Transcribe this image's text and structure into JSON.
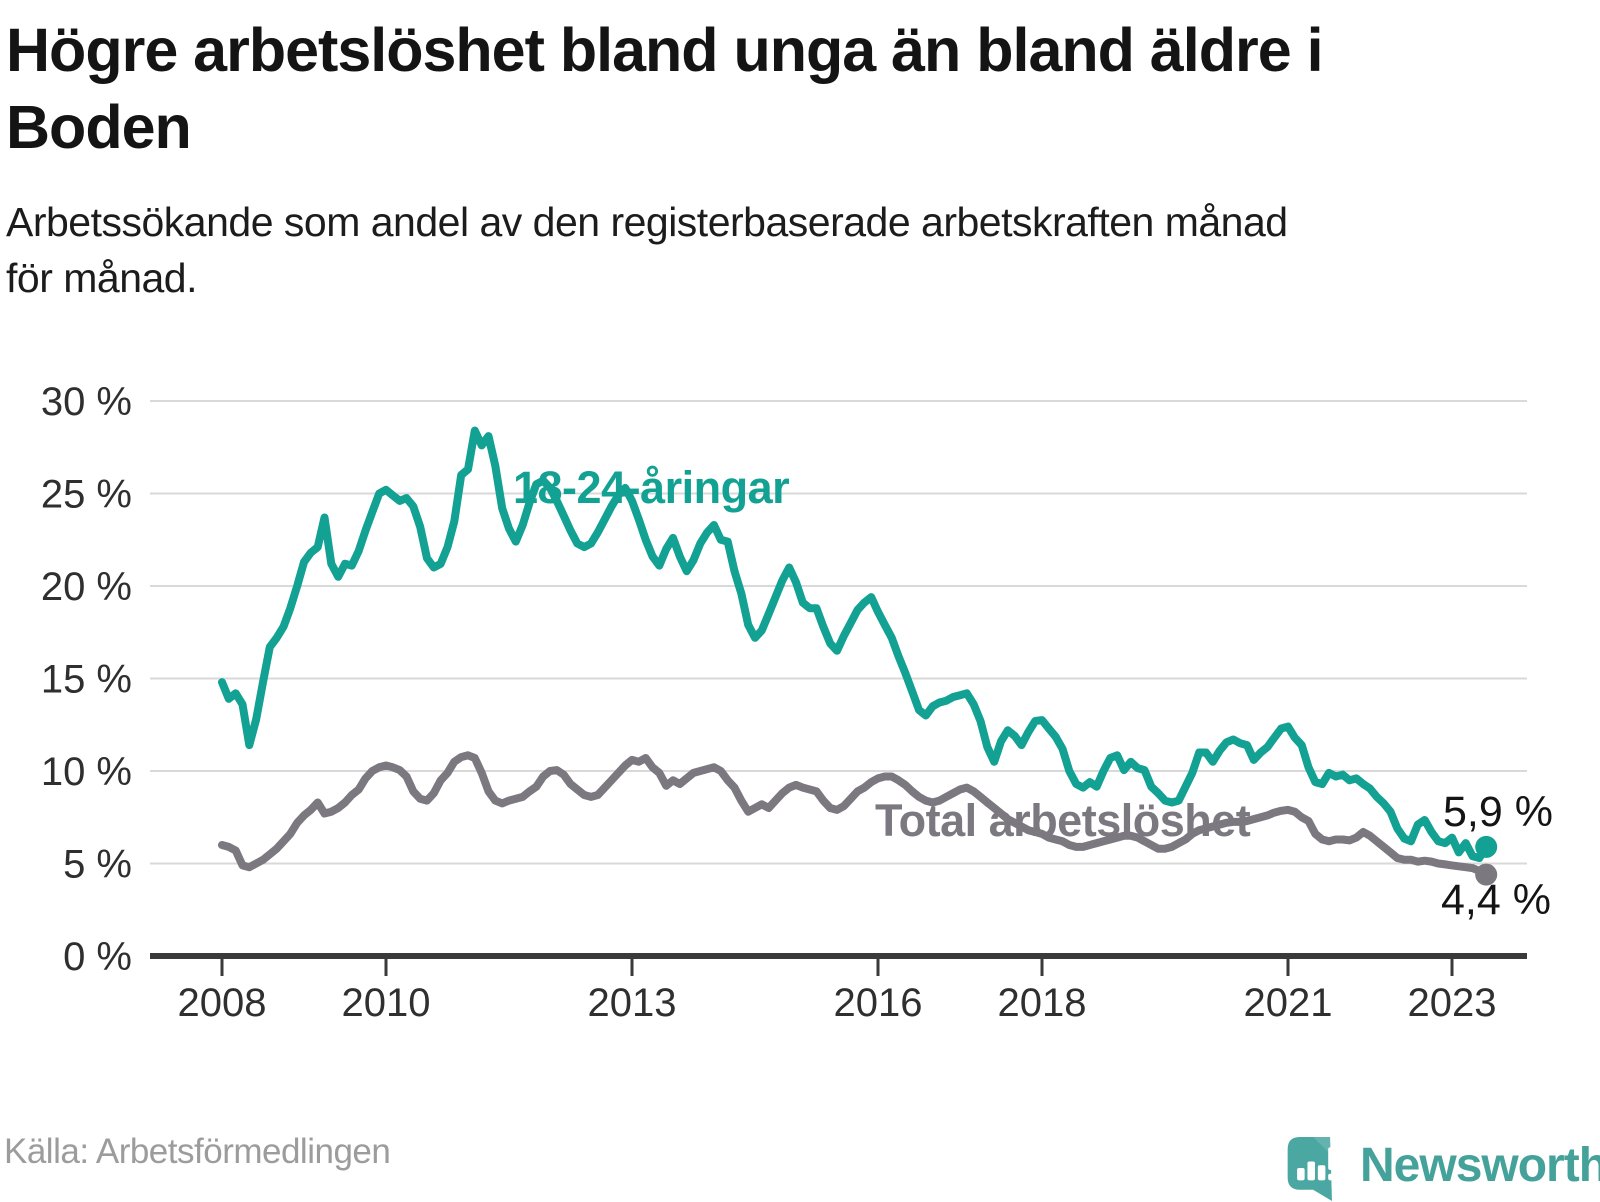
{
  "header": {
    "title": "Högre arbetslöshet bland unga än bland äldre i Boden",
    "title_lines": [
      "Högre arbetslöshet bland unga än bland äldre i",
      "Boden"
    ],
    "subtitle": "Arbetssökande som andel av den registerbaserade arbetskraften månad för månad.",
    "subtitle_lines": [
      "Arbetssökande som andel av den registerbaserade arbetskraften månad",
      "för månad."
    ]
  },
  "chart_data": {
    "type": "line",
    "unit": "%",
    "frequency": "monthly",
    "x_start": "2008-01",
    "x_end": "2023-06",
    "ylim": [
      0,
      30
    ],
    "grid": true,
    "x_ticks": {
      "values": [
        2008,
        2010,
        2013,
        2016,
        2018,
        2021,
        2023
      ],
      "labels": [
        "2008",
        "2010",
        "2013",
        "2016",
        "2018",
        "2021",
        "2023"
      ]
    },
    "y_ticks": {
      "values": [
        0,
        5,
        10,
        15,
        20,
        25,
        30
      ],
      "labels": [
        "0 %",
        "5 %",
        "10 %",
        "15 %",
        "20 %",
        "25 %",
        "30 %"
      ]
    },
    "series": [
      {
        "name": "18-24-åringar",
        "color": "#12A192",
        "end_label": "5,9 %",
        "end_value": 5.9,
        "values": [
          14.8,
          13.9,
          14.2,
          13.6,
          11.4,
          12.8,
          14.8,
          16.7,
          17.2,
          17.8,
          18.8,
          20.0,
          21.3,
          21.8,
          22.1,
          23.7,
          21.2,
          20.5,
          21.2,
          21.1,
          21.9,
          23.0,
          24.0,
          25.0,
          25.2,
          24.9,
          24.6,
          24.75,
          24.3,
          23.2,
          21.5,
          21.0,
          21.2,
          22.1,
          23.5,
          26.0,
          26.3,
          28.4,
          27.6,
          28.1,
          26.5,
          24.2,
          23.1,
          22.4,
          23.3,
          24.5,
          25.5,
          25.7,
          25.3,
          24.6,
          23.8,
          23.0,
          22.3,
          22.1,
          22.3,
          22.9,
          23.6,
          24.3,
          24.9,
          25.3,
          24.6,
          23.6,
          22.5,
          21.6,
          21.1,
          22.0,
          22.6,
          21.6,
          20.8,
          21.4,
          22.3,
          22.9,
          23.3,
          22.5,
          22.4,
          20.8,
          19.6,
          17.9,
          17.2,
          17.6,
          18.5,
          19.4,
          20.3,
          21.0,
          20.2,
          19.1,
          18.8,
          18.8,
          17.8,
          16.9,
          16.5,
          17.3,
          18.0,
          18.7,
          19.1,
          19.4,
          18.6,
          17.9,
          17.2,
          16.2,
          15.3,
          14.3,
          13.3,
          13.0,
          13.5,
          13.7,
          13.8,
          14.0,
          14.1,
          14.2,
          13.6,
          12.7,
          11.3,
          10.5,
          11.6,
          12.2,
          11.9,
          11.4,
          12.1,
          12.7,
          12.75,
          12.3,
          11.85,
          11.2,
          10.0,
          9.3,
          9.1,
          9.4,
          9.15,
          10.0,
          10.7,
          10.85,
          10.05,
          10.5,
          10.15,
          10.05,
          9.15,
          8.8,
          8.4,
          8.3,
          8.4,
          9.15,
          9.9,
          11.0,
          11.0,
          10.5,
          11.1,
          11.55,
          11.7,
          11.5,
          11.4,
          10.6,
          11.0,
          11.3,
          11.8,
          12.3,
          12.4,
          11.8,
          11.4,
          10.2,
          9.4,
          9.3,
          9.9,
          9.7,
          9.8,
          9.5,
          9.6,
          9.3,
          9.05,
          8.6,
          8.25,
          7.8,
          6.9,
          6.35,
          6.2,
          7.1,
          7.35,
          6.7,
          6.2,
          6.1,
          6.4,
          5.6,
          6.1,
          5.4,
          5.3,
          5.9
        ]
      },
      {
        "name": "Total arbetslöshet",
        "color": "#7B7880",
        "end_label": "4,4 %",
        "end_value": 4.4,
        "values": [
          6.0,
          5.9,
          5.7,
          4.9,
          4.8,
          5.0,
          5.2,
          5.5,
          5.8,
          6.2,
          6.6,
          7.2,
          7.6,
          7.9,
          8.3,
          7.7,
          7.8,
          8.0,
          8.3,
          8.7,
          9.0,
          9.6,
          10.0,
          10.2,
          10.3,
          10.2,
          10.05,
          9.7,
          8.9,
          8.5,
          8.4,
          8.8,
          9.5,
          9.9,
          10.5,
          10.75,
          10.85,
          10.7,
          9.9,
          8.9,
          8.4,
          8.25,
          8.4,
          8.5,
          8.6,
          8.9,
          9.15,
          9.7,
          10.0,
          10.05,
          9.8,
          9.3,
          9.0,
          8.7,
          8.6,
          8.7,
          9.1,
          9.5,
          9.9,
          10.3,
          10.6,
          10.5,
          10.7,
          10.2,
          9.9,
          9.2,
          9.5,
          9.3,
          9.6,
          9.9,
          10.0,
          10.1,
          10.2,
          10.0,
          9.5,
          9.1,
          8.4,
          7.8,
          8.0,
          8.2,
          8.0,
          8.4,
          8.8,
          9.1,
          9.25,
          9.1,
          9.0,
          8.9,
          8.4,
          8.0,
          7.9,
          8.1,
          8.5,
          8.9,
          9.1,
          9.4,
          9.6,
          9.7,
          9.7,
          9.5,
          9.25,
          8.9,
          8.6,
          8.4,
          8.3,
          8.4,
          8.6,
          8.8,
          9.0,
          9.1,
          8.9,
          8.6,
          8.3,
          8.0,
          7.7,
          7.4,
          7.2,
          7.0,
          6.8,
          6.7,
          6.6,
          6.4,
          6.3,
          6.2,
          6.0,
          5.9,
          5.9,
          6.0,
          6.1,
          6.2,
          6.3,
          6.4,
          6.5,
          6.5,
          6.4,
          6.2,
          6.0,
          5.8,
          5.8,
          5.9,
          6.1,
          6.3,
          6.6,
          6.8,
          6.9,
          7.0,
          7.1,
          7.2,
          7.25,
          7.25,
          7.3,
          7.4,
          7.5,
          7.6,
          7.75,
          7.85,
          7.9,
          7.8,
          7.5,
          7.3,
          6.6,
          6.3,
          6.2,
          6.3,
          6.3,
          6.25,
          6.4,
          6.7,
          6.5,
          6.2,
          5.9,
          5.6,
          5.3,
          5.2,
          5.2,
          5.1,
          5.15,
          5.1,
          5.0,
          4.95,
          4.9,
          4.85,
          4.8,
          4.75,
          4.6,
          4.4
        ]
      }
    ]
  },
  "colors": {
    "grid": "#d9d9d9",
    "axis": "#3a3a3a",
    "tick": "#3a3a3a",
    "brand_teal": "#45A29B"
  },
  "footer": {
    "source": "Källa: Arbetsförmedlingen",
    "brand": "Newsworthy"
  }
}
